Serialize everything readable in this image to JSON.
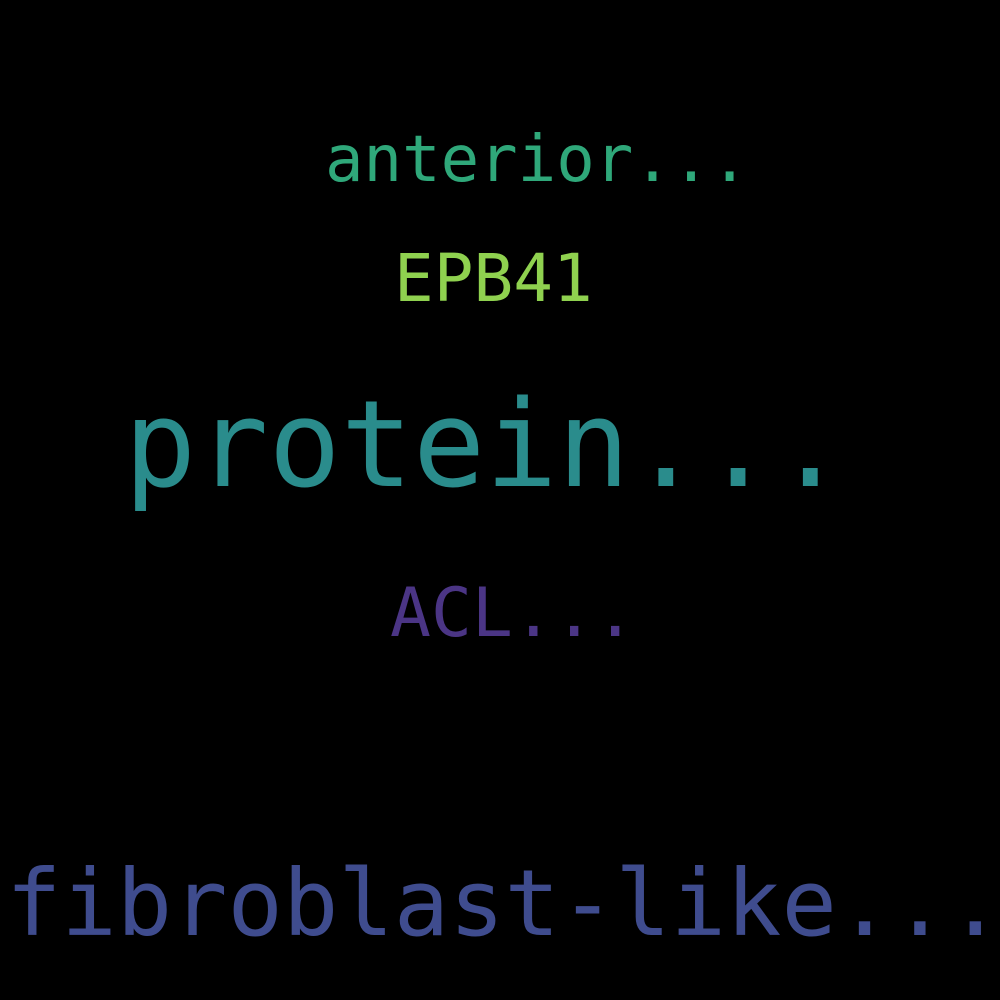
{
  "background_color": "#000000",
  "words": [
    {
      "text": "anterior...",
      "color": "#2fa87a"
    },
    {
      "text": "EPB41",
      "color": "#8fd14f"
    },
    {
      "text": "protein...",
      "color": "#2a8c8c"
    },
    {
      "text": "ACL...",
      "color": "#4b3585"
    },
    {
      "text": "fibroblast-like...",
      "color": "#3f4c8e"
    }
  ]
}
